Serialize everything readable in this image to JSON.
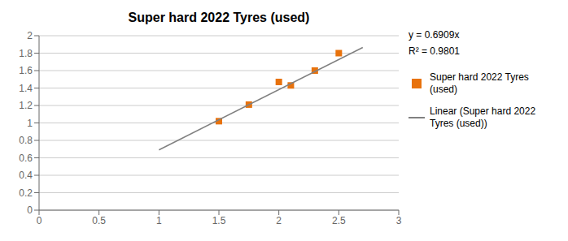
{
  "chart_data": {
    "type": "scatter",
    "title": "Super hard 2022 Tyres (used)",
    "series": [
      {
        "name": "Super hard 2022 Tyres\n(used)",
        "type": "scatter",
        "color": "#E8720C",
        "marker": "square",
        "x": [
          1.5,
          1.75,
          2.0,
          2.1,
          2.3,
          2.5
        ],
        "values": [
          1.02,
          1.21,
          1.47,
          1.43,
          1.6,
          1.8
        ]
      },
      {
        "name": "Linear (Super hard 2022\nTyres (used))",
        "type": "line",
        "color": "#808080",
        "line_style": "solid",
        "x": [
          1.0,
          2.7
        ],
        "values": [
          0.6909,
          1.86543
        ]
      }
    ],
    "xlim": [
      0,
      3
    ],
    "ylim": [
      0,
      2
    ],
    "xticks": [
      0,
      0.5,
      1.0,
      1.5,
      2.0,
      2.5,
      3.0
    ],
    "yticks": [
      0,
      0.2,
      0.4,
      0.6,
      0.8,
      1.0,
      1.2,
      1.4,
      1.6,
      1.8,
      2.0
    ],
    "grid": "y",
    "annotations": [
      "y = 0.6909x",
      "R² = 0.9801"
    ],
    "legend": "right"
  }
}
